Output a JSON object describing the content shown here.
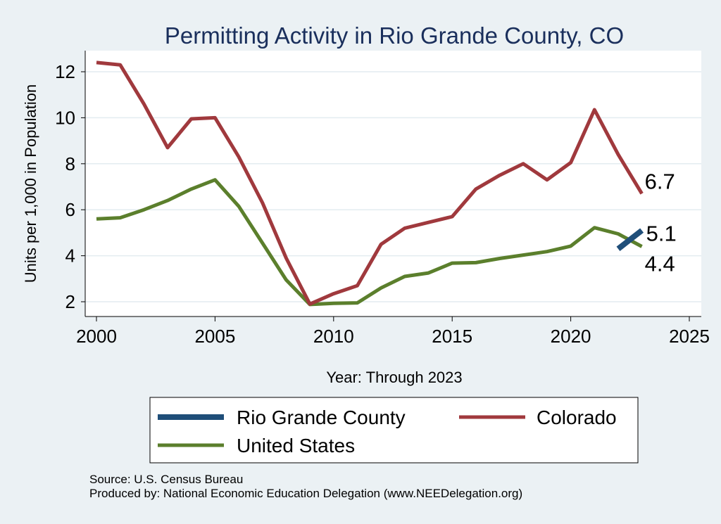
{
  "chart_data": {
    "type": "line",
    "title": "Permitting Activity in Rio Grande County, CO",
    "xlabel": "Year: Through 2023",
    "ylabel": "Units per 1,000 in Population",
    "xlim": [
      2000,
      2025
    ],
    "ylim": [
      1.5,
      13
    ],
    "x_ticks": [
      2000,
      2005,
      2010,
      2015,
      2020,
      2025
    ],
    "y_ticks": [
      2,
      4,
      6,
      8,
      10,
      12
    ],
    "grid": true,
    "legend_position": "bottom",
    "series": [
      {
        "name": "Rio Grande County",
        "color": "#1f4e79",
        "x": [
          2022,
          2023
        ],
        "y": [
          4.3,
          5.1
        ],
        "end_label": "5.1"
      },
      {
        "name": "Colorado",
        "color": "#a0393d",
        "x": [
          2000,
          2001,
          2002,
          2003,
          2004,
          2005,
          2006,
          2007,
          2008,
          2009,
          2010,
          2011,
          2012,
          2013,
          2014,
          2015,
          2016,
          2017,
          2018,
          2019,
          2020,
          2021,
          2022,
          2023
        ],
        "y": [
          12.4,
          12.3,
          10.6,
          8.7,
          9.95,
          10.0,
          8.3,
          6.3,
          3.9,
          1.9,
          2.35,
          2.7,
          4.5,
          5.2,
          5.45,
          5.7,
          6.9,
          7.5,
          8.0,
          7.3,
          8.05,
          10.35,
          8.4,
          6.7
        ],
        "end_label": "6.7"
      },
      {
        "name": "United States",
        "color": "#5b7f2c",
        "x": [
          2000,
          2001,
          2002,
          2003,
          2004,
          2005,
          2006,
          2007,
          2008,
          2009,
          2010,
          2011,
          2012,
          2013,
          2014,
          2015,
          2016,
          2017,
          2018,
          2019,
          2020,
          2021,
          2022,
          2023
        ],
        "y": [
          5.6,
          5.65,
          6.0,
          6.4,
          6.9,
          7.3,
          6.15,
          4.55,
          2.95,
          1.88,
          1.93,
          1.95,
          2.6,
          3.1,
          3.25,
          3.68,
          3.7,
          3.88,
          4.03,
          4.18,
          4.42,
          5.22,
          4.95,
          4.4
        ],
        "end_label": "4.4"
      }
    ]
  },
  "source": {
    "line1": "Source: U.S. Census Bureau",
    "line2": "Produced by: National Economic Education Delegation (www.NEEDelegation.org)"
  }
}
